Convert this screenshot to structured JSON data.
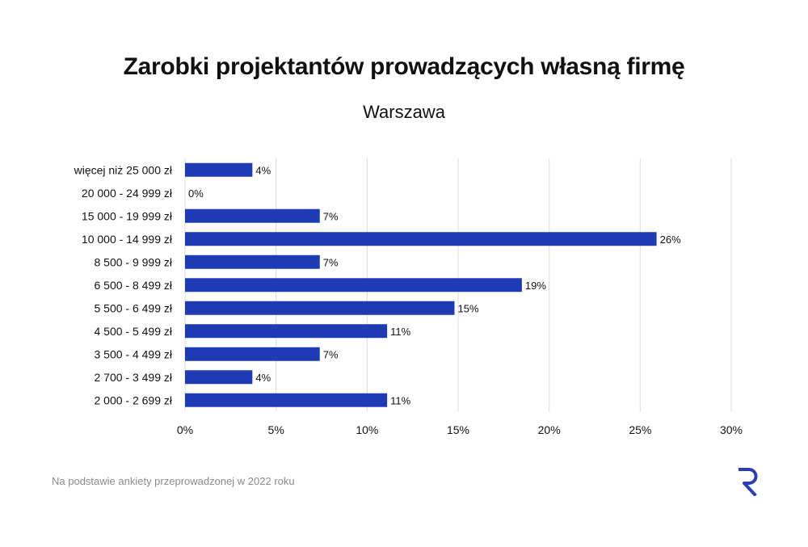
{
  "chart_data": {
    "type": "bar",
    "orientation": "horizontal",
    "title": "Zarobki projektantów prowadzących własną firmę",
    "subtitle": "Warszawa",
    "categories": [
      "więcej niż 25 000 zł",
      "20 000 - 24 999 zł",
      "15 000 - 19 999 zł",
      "10 000 - 14 999 zł",
      "8 500 - 9 999 zł",
      "6 500 - 8 499 zł",
      "5 500 - 6 499 zł",
      "4 500 - 5 499 zł",
      "3 500 - 4 499 zł",
      "2 700 - 3 499 zł",
      "2 000 - 2 699 zł"
    ],
    "values": [
      3.7,
      0,
      7.4,
      25.9,
      7.4,
      18.5,
      14.8,
      11.1,
      7.4,
      3.7,
      11.1
    ],
    "data_labels": [
      "4%",
      "0%",
      "7%",
      "26%",
      "7%",
      "19%",
      "15%",
      "11%",
      "7%",
      "4%",
      "11%"
    ],
    "xlim": [
      0,
      30
    ],
    "x_ticks": [
      0,
      5,
      10,
      15,
      20,
      25,
      30
    ],
    "x_tick_labels": [
      "0%",
      "5%",
      "10%",
      "15%",
      "20%",
      "25%",
      "30%"
    ],
    "grid": "vertical",
    "bar_color": "#1f3bb3",
    "grid_color": "#dcdcdc"
  },
  "footnote": "Na podstawie ankiety przeprowadzonej w 2022 roku",
  "logo": {
    "icon": "r-logo-icon",
    "color": "#2a3fb5"
  }
}
